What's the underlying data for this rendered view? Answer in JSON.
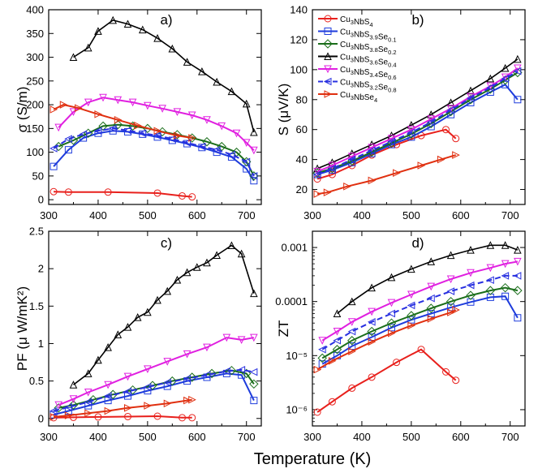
{
  "xlabel": "Temperature (K)",
  "legend": [
    {
      "base": "Cu",
      "sub1": "3",
      "mid": "NbS",
      "sub2": "4",
      "tail": "",
      "sub3": ""
    },
    {
      "base": "Cu",
      "sub1": "3",
      "mid": "NbS",
      "sub2": "3.9",
      "tail": "Se",
      "sub3": "0.1"
    },
    {
      "base": "Cu",
      "sub1": "3",
      "mid": "NbS",
      "sub2": "3.8",
      "tail": "Se",
      "sub3": "0.2"
    },
    {
      "base": "Cu",
      "sub1": "3",
      "mid": "NbS",
      "sub2": "3.6",
      "tail": "Se",
      "sub3": "0.4"
    },
    {
      "base": "Cu",
      "sub1": "3",
      "mid": "NbS",
      "sub2": "3.4",
      "tail": "Se",
      "sub3": "0.6"
    },
    {
      "base": "Cu",
      "sub1": "3",
      "mid": "NbS",
      "sub2": "3.2",
      "tail": "Se",
      "sub3": "0.8"
    },
    {
      "base": "Cu",
      "sub1": "3",
      "mid": "NbSe",
      "sub2": "4",
      "tail": "",
      "sub3": ""
    }
  ],
  "series_style": [
    {
      "color": "#e8201c",
      "marker": "circle",
      "dash": false
    },
    {
      "color": "#1e3cdc",
      "marker": "square",
      "dash": false
    },
    {
      "color": "#1a6e1a",
      "marker": "diamond",
      "dash": false
    },
    {
      "color": "#000000",
      "marker": "triangle-up",
      "dash": false
    },
    {
      "color": "#e020e0",
      "marker": "triangle-down",
      "dash": false
    },
    {
      "color": "#2830e0",
      "marker": "triangle-left",
      "dash": true
    },
    {
      "color": "#e03010",
      "marker": "triangle-right",
      "dash": false
    }
  ],
  "chart_data": [
    {
      "type": "line",
      "panel": "a)",
      "ylabel": "σ (S/m)",
      "yscale": "linear",
      "xlim": [
        300,
        730
      ],
      "ylim": [
        -10,
        400
      ],
      "xticks": [
        300,
        400,
        500,
        600,
        700
      ],
      "yticks": [
        0,
        50,
        100,
        150,
        200,
        250,
        300,
        350,
        400
      ],
      "ytick_labels": [
        "0",
        "50",
        "100",
        "150",
        "200",
        "250",
        "300",
        "350",
        "400"
      ],
      "series": [
        {
          "name": "Cu3NbS4",
          "x": [
            310,
            340,
            420,
            520,
            570,
            590
          ],
          "y": [
            17,
            16,
            16,
            14,
            8,
            6
          ]
        },
        {
          "name": "Cu3NbS3.9Se0.1",
          "x": [
            310,
            340,
            370,
            400,
            430,
            460,
            490,
            520,
            550,
            580,
            610,
            640,
            670,
            700,
            715
          ],
          "y": [
            70,
            105,
            130,
            140,
            145,
            143,
            138,
            132,
            125,
            118,
            110,
            100,
            90,
            65,
            40
          ]
        },
        {
          "name": "Cu3NbS3.8Se0.2",
          "x": [
            320,
            350,
            380,
            410,
            440,
            470,
            500,
            530,
            560,
            590,
            620,
            650,
            680,
            700,
            715
          ],
          "y": [
            112,
            125,
            140,
            155,
            158,
            155,
            150,
            143,
            137,
            130,
            122,
            112,
            100,
            80,
            50
          ]
        },
        {
          "name": "Cu3NbS3.6Se0.4",
          "x": [
            350,
            380,
            400,
            430,
            460,
            490,
            520,
            550,
            580,
            610,
            640,
            670,
            700,
            715
          ],
          "y": [
            300,
            320,
            355,
            378,
            370,
            358,
            340,
            318,
            290,
            270,
            248,
            228,
            202,
            142
          ]
        },
        {
          "name": "Cu3NbS3.4Se0.6",
          "x": [
            320,
            350,
            380,
            410,
            440,
            470,
            500,
            530,
            560,
            590,
            620,
            650,
            680,
            700,
            715
          ],
          "y": [
            152,
            185,
            205,
            215,
            210,
            205,
            198,
            192,
            185,
            178,
            168,
            155,
            140,
            120,
            104
          ]
        },
        {
          "name": "Cu3NbS3.2Se0.8",
          "x": [
            310,
            340,
            370,
            400,
            430,
            460,
            490,
            520,
            550,
            580,
            610,
            640,
            670,
            700,
            715
          ],
          "y": [
            108,
            128,
            138,
            145,
            150,
            146,
            140,
            135,
            128,
            120,
            112,
            105,
            95,
            80,
            50
          ]
        },
        {
          "name": "Cu3NbSe4",
          "x": [
            310,
            330,
            360,
            400,
            440,
            480,
            520,
            560,
            590
          ],
          "y": [
            190,
            200,
            193,
            180,
            168,
            156,
            145,
            135,
            130
          ]
        }
      ]
    },
    {
      "type": "line",
      "panel": "b)",
      "ylabel": "S (μV/K)",
      "yscale": "linear",
      "xlim": [
        300,
        730
      ],
      "ylim": [
        10,
        140
      ],
      "xticks": [
        300,
        400,
        500,
        600,
        700
      ],
      "yticks": [
        20,
        40,
        60,
        80,
        100,
        120,
        140
      ],
      "ytick_labels": [
        "20",
        "40",
        "60",
        "80",
        "100",
        "120",
        "140"
      ],
      "series": [
        {
          "name": "Cu3NbS4",
          "x": [
            310,
            340,
            380,
            420,
            470,
            520,
            570,
            590
          ],
          "y": [
            27,
            30,
            36,
            43,
            50,
            56,
            60,
            54
          ]
        },
        {
          "name": "Cu3NbS3.9Se0.1",
          "x": [
            310,
            340,
            380,
            420,
            460,
            500,
            540,
            580,
            620,
            660,
            690,
            715
          ],
          "y": [
            30,
            33,
            38,
            44,
            50,
            55,
            62,
            70,
            78,
            85,
            90,
            80
          ]
        },
        {
          "name": "Cu3NbS3.8Se0.2",
          "x": [
            310,
            340,
            380,
            420,
            460,
            500,
            540,
            580,
            620,
            660,
            690,
            715
          ],
          "y": [
            31,
            34,
            39,
            45,
            51,
            57,
            64,
            72,
            80,
            87,
            93,
            98
          ]
        },
        {
          "name": "Cu3NbS3.6Se0.4",
          "x": [
            310,
            340,
            380,
            420,
            460,
            500,
            540,
            580,
            620,
            660,
            690,
            715
          ],
          "y": [
            34,
            38,
            44,
            50,
            56,
            63,
            70,
            78,
            86,
            94,
            101,
            107
          ]
        },
        {
          "name": "Cu3NbS3.4Se0.6",
          "x": [
            310,
            340,
            380,
            420,
            460,
            500,
            540,
            580,
            620,
            660,
            690,
            715
          ],
          "y": [
            32,
            36,
            42,
            48,
            54,
            60,
            67,
            74,
            82,
            89,
            95,
            101
          ]
        },
        {
          "name": "Cu3NbS3.2Se0.8",
          "x": [
            310,
            340,
            380,
            420,
            460,
            500,
            540,
            580,
            620,
            660,
            690,
            715
          ],
          "y": [
            30,
            34,
            40,
            46,
            52,
            58,
            65,
            73,
            81,
            88,
            94,
            99
          ]
        },
        {
          "name": "Cu3NbSe4",
          "x": [
            310,
            330,
            370,
            420,
            470,
            520,
            560,
            590
          ],
          "y": [
            17,
            18,
            22,
            26,
            31,
            36,
            40,
            43
          ]
        }
      ]
    },
    {
      "type": "line",
      "panel": "c)",
      "ylabel": "PF (μ W/mK²)",
      "yscale": "linear",
      "xlim": [
        300,
        730
      ],
      "ylim": [
        -0.1,
        2.5
      ],
      "xticks": [
        300,
        400,
        500,
        600,
        700
      ],
      "yticks": [
        0,
        0.5,
        1,
        1.5,
        2,
        2.5
      ],
      "ytick_labels": [
        "0",
        "0.5",
        "1",
        "1.5",
        "2",
        "2.5"
      ],
      "series": [
        {
          "name": "Cu3NbS4",
          "x": [
            310,
            350,
            400,
            460,
            520,
            570,
            590
          ],
          "y": [
            0.01,
            0.015,
            0.02,
            0.025,
            0.03,
            0.01,
            0.01
          ]
        },
        {
          "name": "Cu3NbS3.9Se0.1",
          "x": [
            310,
            340,
            380,
            420,
            460,
            500,
            540,
            580,
            620,
            660,
            690,
            715
          ],
          "y": [
            0.05,
            0.1,
            0.17,
            0.24,
            0.3,
            0.37,
            0.43,
            0.5,
            0.55,
            0.6,
            0.58,
            0.24
          ]
        },
        {
          "name": "Cu3NbS3.8Se0.2",
          "x": [
            320,
            350,
            390,
            430,
            470,
            510,
            550,
            590,
            630,
            670,
            700,
            715
          ],
          "y": [
            0.14,
            0.18,
            0.25,
            0.32,
            0.38,
            0.44,
            0.5,
            0.55,
            0.6,
            0.64,
            0.6,
            0.46
          ]
        },
        {
          "name": "Cu3NbS3.6Se0.4",
          "x": [
            350,
            380,
            400,
            420,
            440,
            460,
            480,
            500,
            520,
            540,
            560,
            580,
            600,
            620,
            640,
            670,
            690,
            715
          ],
          "y": [
            0.45,
            0.6,
            0.78,
            0.95,
            1.12,
            1.22,
            1.35,
            1.42,
            1.58,
            1.7,
            1.85,
            1.95,
            2.02,
            2.08,
            2.18,
            2.31,
            2.2,
            1.67
          ]
        },
        {
          "name": "Cu3NbS3.4Se0.6",
          "x": [
            320,
            350,
            380,
            420,
            460,
            500,
            540,
            580,
            620,
            660,
            690,
            715
          ],
          "y": [
            0.18,
            0.26,
            0.35,
            0.45,
            0.56,
            0.66,
            0.76,
            0.86,
            0.95,
            1.08,
            1.05,
            1.08
          ]
        },
        {
          "name": "Cu3NbS3.2Se0.8",
          "x": [
            310,
            340,
            380,
            420,
            460,
            500,
            540,
            580,
            620,
            660,
            690,
            715
          ],
          "y": [
            0.1,
            0.15,
            0.22,
            0.3,
            0.36,
            0.42,
            0.48,
            0.53,
            0.58,
            0.63,
            0.65,
            0.62
          ]
        },
        {
          "name": "Cu3NbSe4",
          "x": [
            310,
            340,
            380,
            420,
            460,
            500,
            540,
            580,
            590
          ],
          "y": [
            0.02,
            0.04,
            0.07,
            0.1,
            0.14,
            0.17,
            0.2,
            0.24,
            0.25
          ]
        }
      ]
    },
    {
      "type": "line",
      "panel": "d)",
      "ylabel": "ZT",
      "yscale": "log",
      "xlim": [
        300,
        730
      ],
      "ylim": [
        5e-07,
        0.002
      ],
      "xticks": [
        300,
        400,
        500,
        600,
        700
      ],
      "yticks": [
        1e-06,
        1e-05,
        0.0001,
        0.001
      ],
      "ytick_labels": [
        "10⁻⁶",
        "10⁻⁵",
        "0.0001",
        "0.001"
      ],
      "series": [
        {
          "name": "Cu3NbS4",
          "x": [
            310,
            340,
            380,
            420,
            470,
            520,
            570,
            590
          ],
          "y": [
            9e-07,
            1.4e-06,
            2.5e-06,
            4e-06,
            7.5e-06,
            1.3e-05,
            5e-06,
            3.5e-06
          ]
        },
        {
          "name": "Cu3NbS3.9Se0.1",
          "x": [
            320,
            350,
            380,
            420,
            460,
            500,
            540,
            580,
            620,
            660,
            690,
            715
          ],
          "y": [
            7e-06,
            1e-05,
            1.5e-05,
            2.2e-05,
            3.3e-05,
            4.6e-05,
            6e-05,
            7.8e-05,
            9.8e-05,
            0.00012,
            0.000125,
            5e-05
          ]
        },
        {
          "name": "Cu3NbS3.8Se0.2",
          "x": [
            320,
            350,
            380,
            420,
            460,
            500,
            540,
            580,
            620,
            660,
            690,
            715
          ],
          "y": [
            9e-06,
            1.3e-05,
            1.9e-05,
            2.8e-05,
            4e-05,
            5.5e-05,
            7.5e-05,
            0.0001,
            0.00013,
            0.00016,
            0.00018,
            0.00016
          ]
        },
        {
          "name": "Cu3NbS3.6Se0.4",
          "x": [
            350,
            380,
            420,
            460,
            500,
            540,
            580,
            620,
            660,
            690,
            715
          ],
          "y": [
            6e-05,
            0.0001,
            0.00018,
            0.00028,
            0.0004,
            0.00055,
            0.00072,
            0.0009,
            0.0011,
            0.0011,
            0.0009
          ]
        },
        {
          "name": "Cu3NbS3.4Se0.6",
          "x": [
            320,
            350,
            380,
            420,
            460,
            500,
            540,
            580,
            620,
            660,
            690,
            715
          ],
          "y": [
            1.9e-05,
            2.8e-05,
            4.2e-05,
            6.5e-05,
            9.5e-05,
            0.000135,
            0.00019,
            0.00026,
            0.00034,
            0.00042,
            0.0005,
            0.00055
          ]
        },
        {
          "name": "Cu3NbS3.2Se0.8",
          "x": [
            320,
            350,
            380,
            420,
            460,
            500,
            540,
            580,
            620,
            660,
            690,
            715
          ],
          "y": [
            1.3e-05,
            1.9e-05,
            2.8e-05,
            4.2e-05,
            6e-05,
            8.5e-05,
            0.000115,
            0.000155,
            0.0002,
            0.00025,
            0.0003,
            0.0003
          ]
        },
        {
          "name": "Cu3NbSe4",
          "x": [
            310,
            340,
            380,
            420,
            460,
            500,
            540,
            580,
            590
          ],
          "y": [
            5.5e-06,
            8e-06,
            1.2e-05,
            1.8e-05,
            2.6e-05,
            3.6e-05,
            4.8e-05,
            6.3e-05,
            7e-05
          ]
        }
      ]
    }
  ]
}
